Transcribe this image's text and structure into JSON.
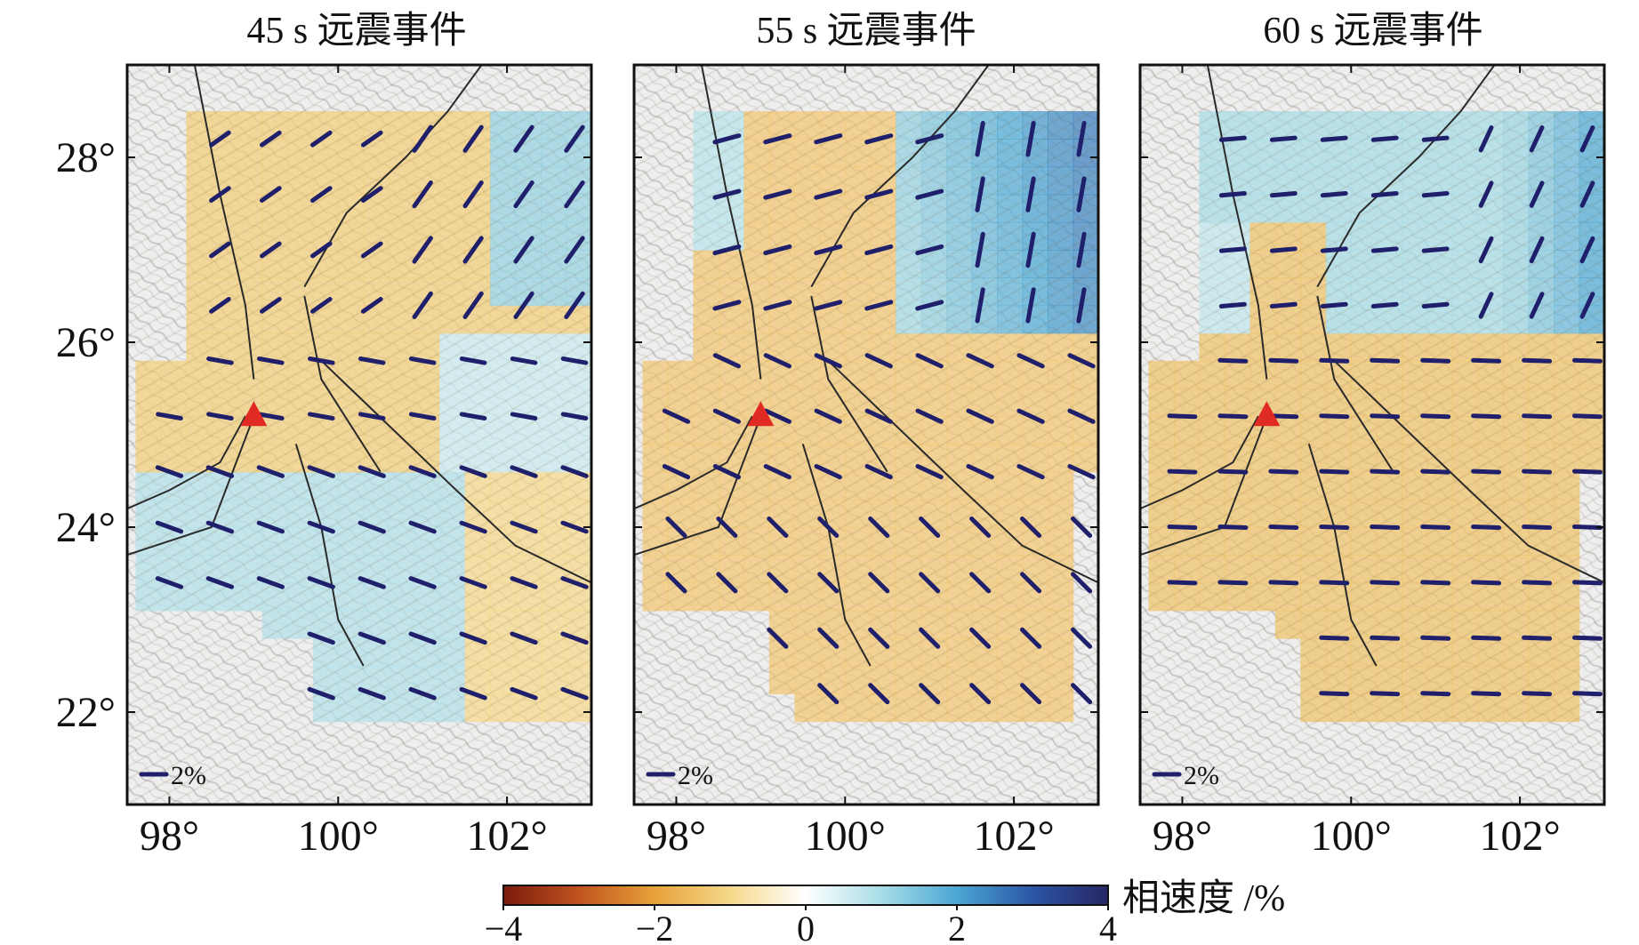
{
  "chart_data": {
    "type": "heatmap",
    "description_units": "phase velocity perturbation (%) with azimuthal anisotropy bars",
    "panels": [
      {
        "title": "45 s 远震事件",
        "pattern": "45s",
        "station_marker": {
          "lon": 99.0,
          "lat": 25.2
        },
        "scale_bar_label": "2%"
      },
      {
        "title": "55 s 远震事件",
        "pattern": "55s",
        "station_marker": {
          "lon": 99.0,
          "lat": 25.2
        },
        "scale_bar_label": "2%"
      },
      {
        "title": "60 s 远震事件",
        "pattern": "60s",
        "station_marker": {
          "lon": 99.0,
          "lat": 25.2
        },
        "scale_bar_label": "2%"
      }
    ],
    "x_axis": {
      "range": [
        97.5,
        103.0
      ],
      "ticks": [
        98,
        100,
        102
      ],
      "tick_labels": [
        "98°",
        "100°",
        "102°"
      ]
    },
    "y_axis": {
      "range": [
        21.0,
        29.0
      ],
      "ticks": [
        22,
        24,
        26,
        28
      ],
      "tick_labels": [
        "22°",
        "24°",
        "26°",
        "28°"
      ]
    },
    "colorbar": {
      "label": "相速度 /%",
      "range": [
        -4,
        4
      ],
      "ticks": [
        -4,
        -2,
        0,
        2,
        4
      ],
      "tick_labels": [
        "−4",
        "−2",
        "0",
        "2",
        "4"
      ],
      "colors": [
        "#7a1a0e",
        "#c0541e",
        "#e7a13a",
        "#f6d98a",
        "#ffffff",
        "#a8dde6",
        "#4aa7d3",
        "#2c55a6",
        "#262763"
      ]
    },
    "grid_spacing_deg": 0.6,
    "colors": {
      "anisotropy_bar": "#1f1f6b",
      "station": "#e02b25",
      "fault": "#2a2a2a",
      "border": "#333333"
    }
  }
}
